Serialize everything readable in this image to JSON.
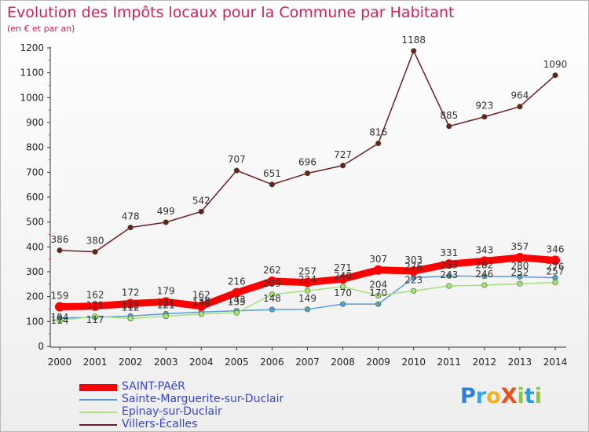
{
  "title": "Evolution des Impôts locaux pour la Commune par Habitant",
  "subtitle": "(en € et par an)",
  "logo": "ProXiti",
  "chart_data": {
    "type": "line",
    "title": "Evolution des Impôts locaux pour la Commune par Habitant",
    "subtitle": "(en € et par an)",
    "categories": [
      "2000",
      "2001",
      "2002",
      "2003",
      "2004",
      "2005",
      "2006",
      "2007",
      "2008",
      "2009",
      "2010",
      "2011",
      "2012",
      "2013",
      "2014"
    ],
    "ylim": [
      0,
      1200
    ],
    "yticks": [
      0,
      100,
      200,
      300,
      400,
      500,
      600,
      700,
      800,
      900,
      1000,
      1100,
      1200
    ],
    "grid": false,
    "legend": "bottom-left",
    "series": [
      {
        "name": "SAINT-PAëR",
        "color": "#ff0000",
        "values": [
          159,
          162,
          172,
          179,
          162,
          216,
          262,
          257,
          271,
          307,
          303,
          331,
          343,
          357,
          346
        ],
        "labels": [
          "159",
          "162",
          "172",
          "179",
          "162",
          "216",
          "262",
          "257",
          "271",
          "307",
          "303",
          "331",
          "343",
          "357",
          "346"
        ]
      },
      {
        "name": "Sainte-Marguerite-sur-Duclair",
        "color": "#5b9bd5",
        "values": [
          114,
          117,
          122,
          131,
          138,
          143,
          148,
          149,
          170,
          170,
          276,
          283,
          282,
          280,
          276
        ],
        "labels": [
          "114",
          "117",
          "122",
          "131",
          "138",
          "143",
          "148",
          "149",
          "170",
          "170",
          "276",
          "283",
          "282",
          "280",
          "276"
        ]
      },
      {
        "name": "Epinay-sur-Duclair",
        "color": "#a6e17a",
        "values": [
          104,
          121,
          112,
          121,
          130,
          135,
          209,
          224,
          240,
          204,
          223,
          243,
          246,
          252,
          257
        ],
        "labels": [
          "104",
          "121",
          "112",
          "121",
          "130",
          "135",
          "209",
          "224",
          "240",
          "204",
          "223",
          "243",
          "246",
          "252",
          "257"
        ]
      },
      {
        "name": "Villers-Écalles",
        "color": "#6b1e24",
        "values": [
          386,
          380,
          478,
          499,
          542,
          707,
          651,
          696,
          727,
          816,
          1188,
          885,
          923,
          964,
          1090
        ],
        "labels": [
          "386",
          "380",
          "478",
          "499",
          "542",
          "707",
          "651",
          "696",
          "727",
          "816",
          "1188",
          "885",
          "923",
          "964",
          "1090"
        ]
      }
    ]
  }
}
